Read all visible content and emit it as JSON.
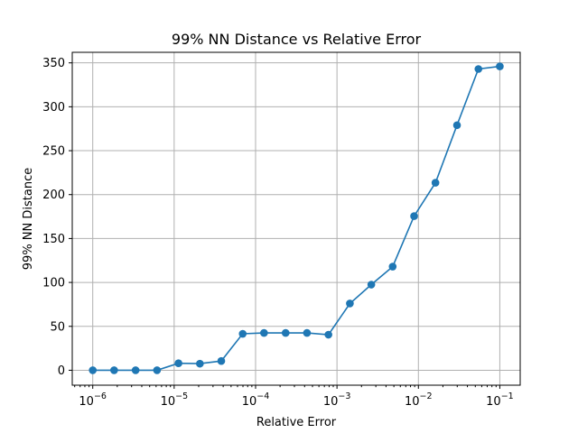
{
  "chart_data": {
    "type": "line",
    "title": "99% NN Distance vs Relative Error",
    "xlabel": "Relative Error",
    "ylabel": "99% NN Distance",
    "xscale": "log",
    "xlim": [
      5.6e-07,
      0.178
    ],
    "ylim": [
      -17,
      362
    ],
    "xticks": [
      {
        "value": 1e-06,
        "base": "10",
        "exp": "−6"
      },
      {
        "value": 1e-05,
        "base": "10",
        "exp": "−5"
      },
      {
        "value": 0.0001,
        "base": "10",
        "exp": "−4"
      },
      {
        "value": 0.001,
        "base": "10",
        "exp": "−3"
      },
      {
        "value": 0.01,
        "base": "10",
        "exp": "−2"
      },
      {
        "value": 0.1,
        "base": "10",
        "exp": "−1"
      }
    ],
    "yticks": [
      0,
      50,
      100,
      150,
      200,
      250,
      300,
      350
    ],
    "grid": true,
    "color": "#1f77b4",
    "series": [
      {
        "x": [
          1e-06,
          1.83e-06,
          3.36e-06,
          6.16e-06,
          1.13e-05,
          2.07e-05,
          3.79e-05,
          6.95e-05,
          0.000127,
          0.000234,
          0.000428,
          0.000785,
          0.00144,
          0.00264,
          0.00483,
          0.00886,
          0.0162,
          0.0298,
          0.0546,
          0.1
        ],
        "y": [
          0,
          0,
          0,
          0,
          8,
          7.5,
          10.5,
          41.5,
          42.5,
          42.5,
          42.5,
          40.5,
          76,
          97.5,
          118,
          175.5,
          213.5,
          279,
          343,
          346
        ]
      }
    ]
  }
}
